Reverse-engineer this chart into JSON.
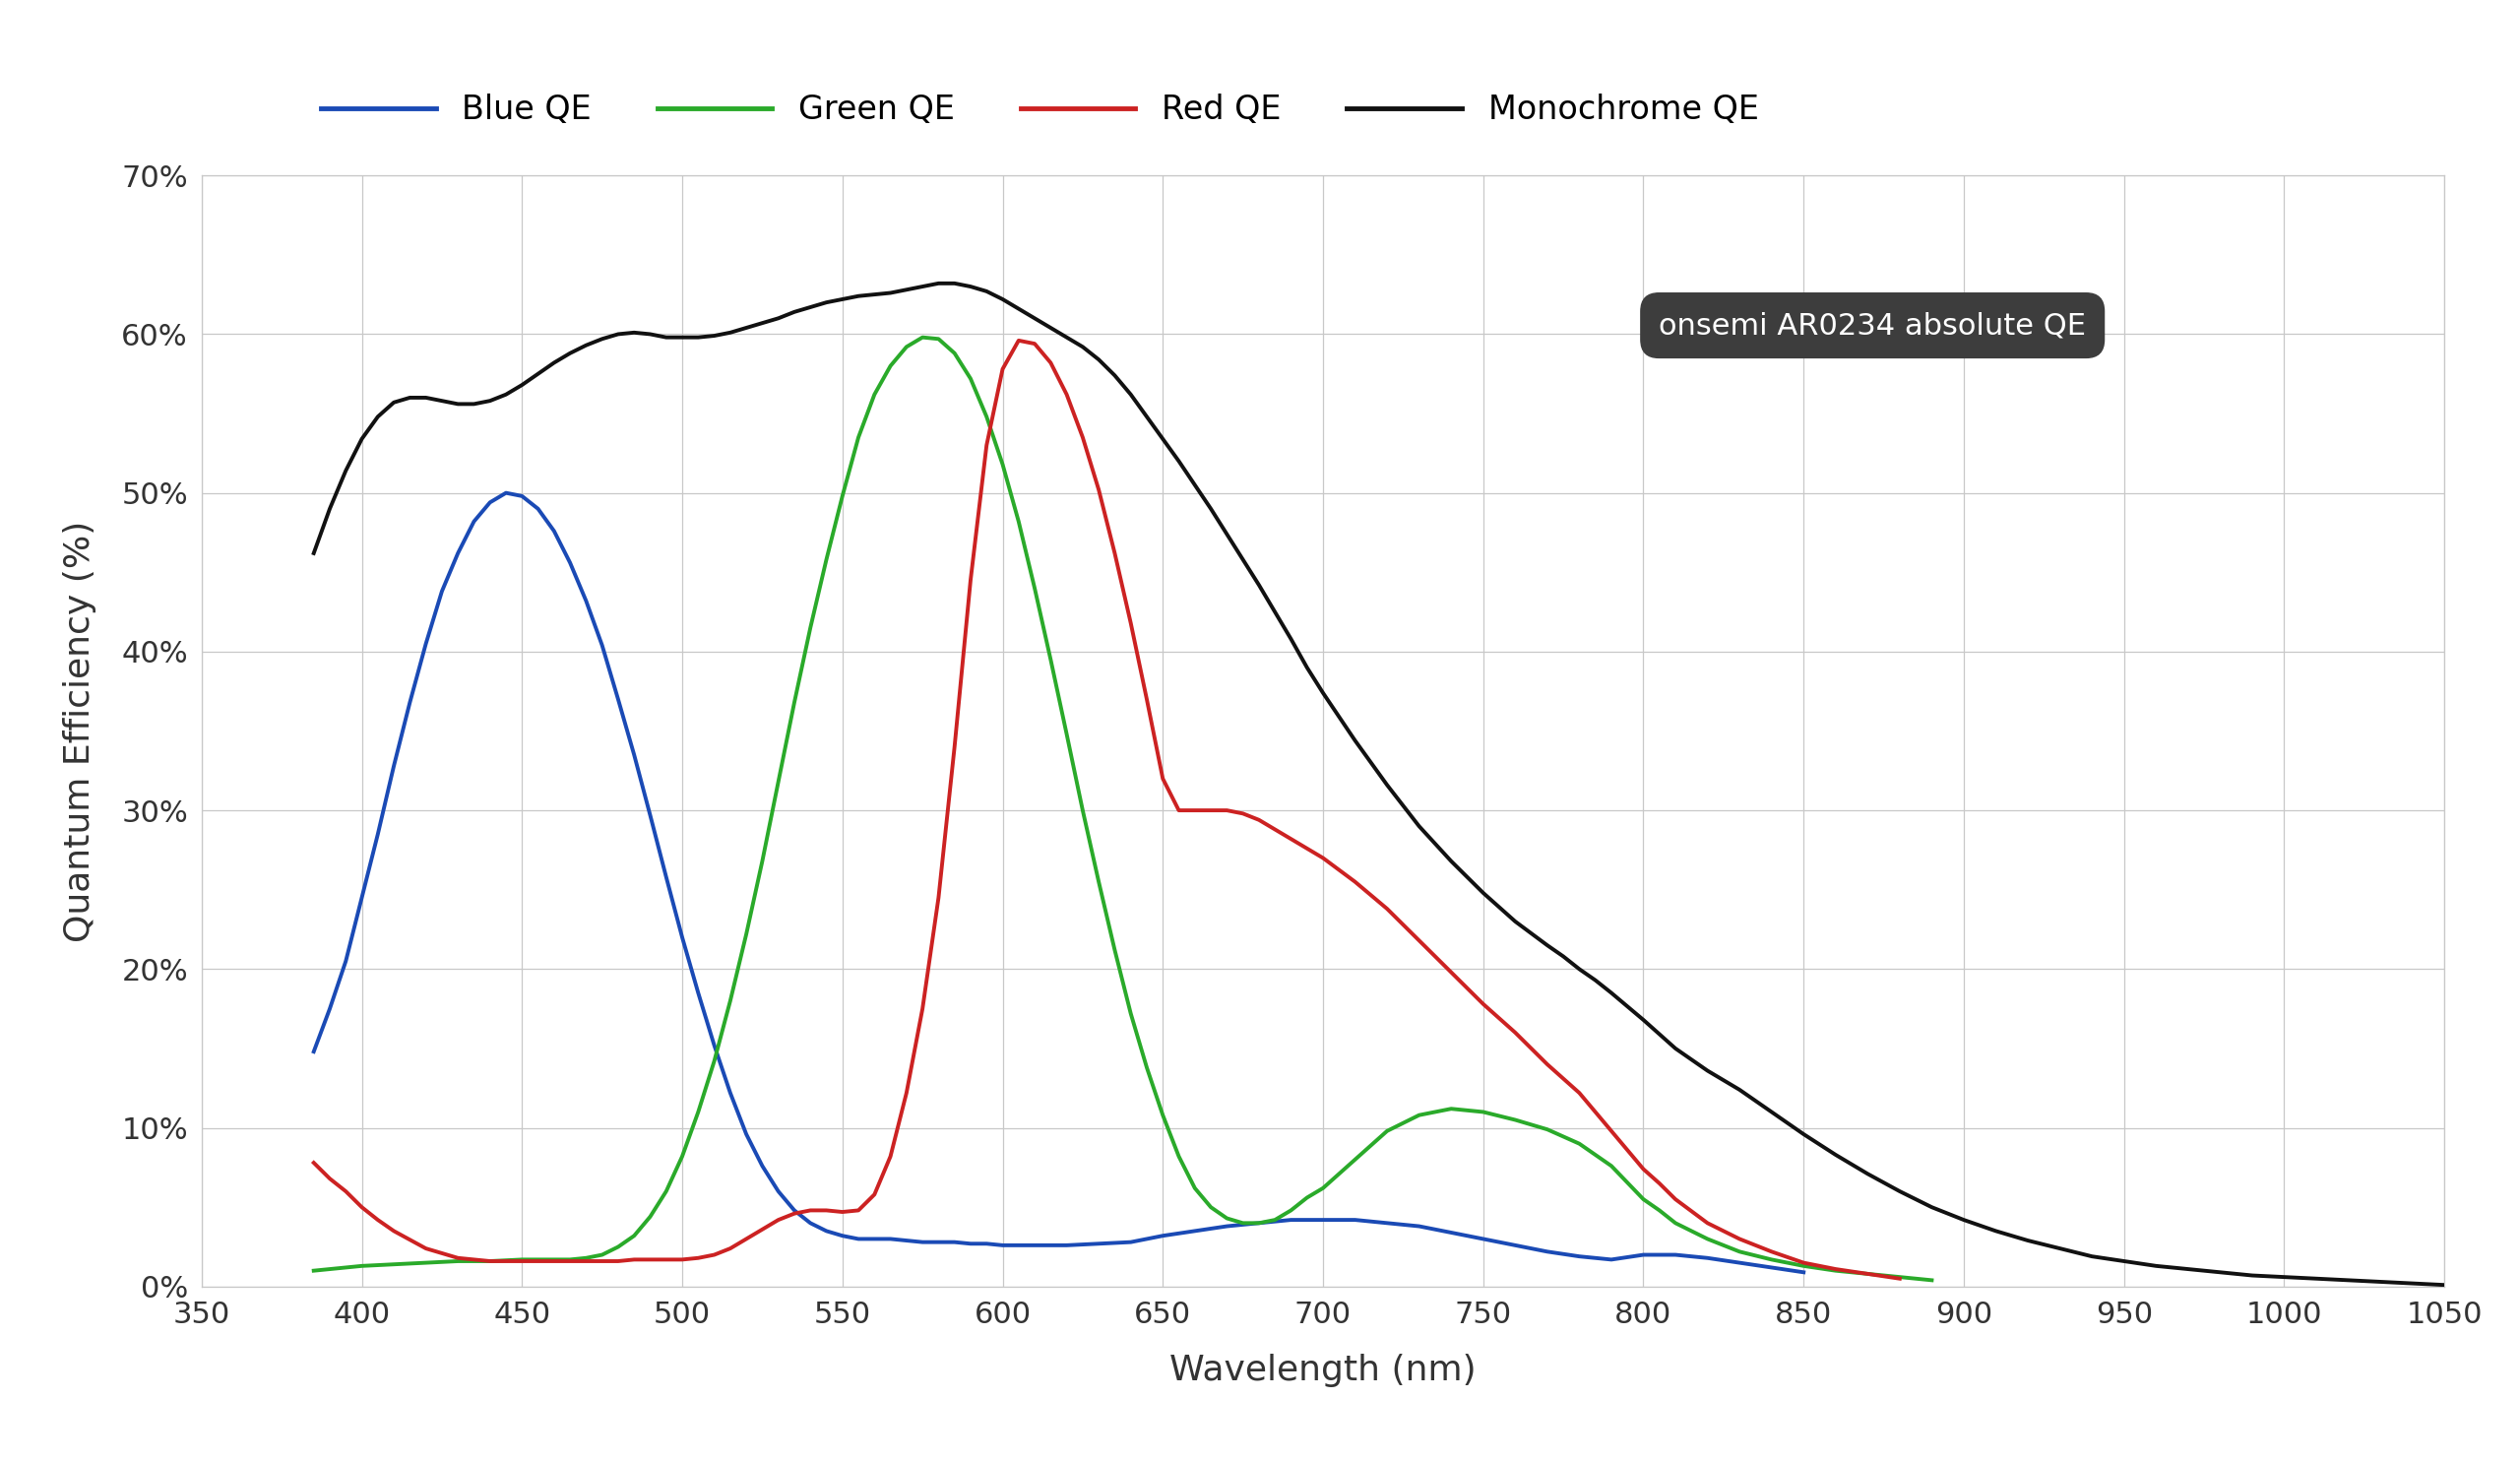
{
  "xlabel": "Wavelength (nm)",
  "ylabel": "Quantum Efficiency (%)",
  "annotation": "onsemi AR0234 absolute QE",
  "xlim": [
    350,
    1050
  ],
  "ylim": [
    0,
    0.7
  ],
  "yticks": [
    0,
    0.1,
    0.2,
    0.3,
    0.4,
    0.5,
    0.6,
    0.7
  ],
  "ytick_labels": [
    "0%",
    "10%",
    "20%",
    "30%",
    "40%",
    "50%",
    "60%",
    "70%"
  ],
  "xticks": [
    350,
    400,
    450,
    500,
    550,
    600,
    650,
    700,
    750,
    800,
    850,
    900,
    950,
    1000,
    1050
  ],
  "background_color": "#ffffff",
  "grid_color": "#c8c8c8",
  "legend_entries": [
    "Blue QE",
    "Green QE",
    "Red QE",
    "Monochrome QE"
  ],
  "line_colors": [
    "#1a4ab5",
    "#2aaa2a",
    "#cc2222",
    "#111111"
  ],
  "blue_qe": {
    "wavelength": [
      385,
      390,
      395,
      400,
      405,
      410,
      415,
      420,
      425,
      430,
      435,
      440,
      445,
      450,
      455,
      460,
      465,
      470,
      475,
      480,
      485,
      490,
      495,
      500,
      505,
      510,
      515,
      520,
      525,
      530,
      535,
      540,
      545,
      550,
      555,
      560,
      565,
      570,
      575,
      580,
      585,
      590,
      595,
      600,
      610,
      620,
      630,
      640,
      650,
      660,
      670,
      680,
      690,
      700,
      710,
      720,
      730,
      740,
      750,
      760,
      770,
      780,
      790,
      800,
      810,
      820,
      830,
      840,
      850
    ],
    "qe": [
      0.148,
      0.175,
      0.205,
      0.245,
      0.285,
      0.328,
      0.368,
      0.405,
      0.438,
      0.462,
      0.482,
      0.494,
      0.5,
      0.498,
      0.49,
      0.476,
      0.456,
      0.432,
      0.404,
      0.37,
      0.335,
      0.297,
      0.258,
      0.22,
      0.185,
      0.152,
      0.122,
      0.096,
      0.076,
      0.06,
      0.048,
      0.04,
      0.035,
      0.032,
      0.03,
      0.03,
      0.03,
      0.029,
      0.028,
      0.028,
      0.028,
      0.027,
      0.027,
      0.026,
      0.026,
      0.026,
      0.027,
      0.028,
      0.032,
      0.035,
      0.038,
      0.04,
      0.042,
      0.042,
      0.042,
      0.04,
      0.038,
      0.034,
      0.03,
      0.026,
      0.022,
      0.019,
      0.017,
      0.02,
      0.02,
      0.018,
      0.015,
      0.012,
      0.009
    ]
  },
  "green_qe": {
    "wavelength": [
      385,
      390,
      395,
      400,
      410,
      420,
      430,
      440,
      450,
      455,
      460,
      465,
      470,
      475,
      480,
      485,
      490,
      495,
      500,
      505,
      510,
      515,
      520,
      525,
      530,
      535,
      540,
      545,
      550,
      555,
      560,
      565,
      570,
      575,
      580,
      585,
      590,
      595,
      600,
      605,
      610,
      615,
      620,
      625,
      630,
      635,
      640,
      645,
      650,
      655,
      660,
      665,
      670,
      675,
      680,
      685,
      690,
      695,
      700,
      710,
      720,
      730,
      740,
      750,
      760,
      770,
      780,
      790,
      800,
      805,
      810,
      820,
      830,
      840,
      850,
      860,
      870,
      880,
      890
    ],
    "qe": [
      0.01,
      0.011,
      0.012,
      0.013,
      0.014,
      0.015,
      0.016,
      0.016,
      0.017,
      0.017,
      0.017,
      0.017,
      0.018,
      0.02,
      0.025,
      0.032,
      0.044,
      0.06,
      0.082,
      0.11,
      0.142,
      0.18,
      0.222,
      0.268,
      0.318,
      0.368,
      0.415,
      0.458,
      0.498,
      0.535,
      0.562,
      0.58,
      0.592,
      0.598,
      0.597,
      0.588,
      0.572,
      0.548,
      0.518,
      0.482,
      0.44,
      0.395,
      0.348,
      0.3,
      0.255,
      0.212,
      0.172,
      0.138,
      0.108,
      0.082,
      0.062,
      0.05,
      0.043,
      0.04,
      0.04,
      0.042,
      0.048,
      0.056,
      0.062,
      0.08,
      0.098,
      0.108,
      0.112,
      0.11,
      0.105,
      0.099,
      0.09,
      0.076,
      0.055,
      0.048,
      0.04,
      0.03,
      0.022,
      0.017,
      0.013,
      0.01,
      0.008,
      0.006,
      0.004
    ]
  },
  "red_qe": {
    "wavelength": [
      385,
      390,
      395,
      400,
      405,
      410,
      420,
      430,
      440,
      450,
      455,
      460,
      465,
      470,
      475,
      480,
      485,
      490,
      495,
      500,
      505,
      510,
      515,
      520,
      525,
      530,
      535,
      540,
      545,
      550,
      555,
      560,
      565,
      570,
      575,
      580,
      585,
      590,
      595,
      600,
      605,
      610,
      615,
      620,
      625,
      630,
      635,
      640,
      645,
      650,
      655,
      660,
      665,
      670,
      675,
      680,
      690,
      700,
      710,
      720,
      730,
      740,
      750,
      760,
      770,
      780,
      790,
      800,
      805,
      810,
      820,
      830,
      840,
      850,
      860,
      870,
      880
    ],
    "qe": [
      0.078,
      0.068,
      0.06,
      0.05,
      0.042,
      0.035,
      0.024,
      0.018,
      0.016,
      0.016,
      0.016,
      0.016,
      0.016,
      0.016,
      0.016,
      0.016,
      0.017,
      0.017,
      0.017,
      0.017,
      0.018,
      0.02,
      0.024,
      0.03,
      0.036,
      0.042,
      0.046,
      0.048,
      0.048,
      0.047,
      0.048,
      0.058,
      0.082,
      0.122,
      0.175,
      0.245,
      0.34,
      0.445,
      0.53,
      0.578,
      0.596,
      0.594,
      0.582,
      0.562,
      0.535,
      0.502,
      0.462,
      0.418,
      0.37,
      0.32,
      0.3,
      0.3,
      0.3,
      0.3,
      0.298,
      0.294,
      0.282,
      0.27,
      0.255,
      0.238,
      0.218,
      0.198,
      0.178,
      0.16,
      0.14,
      0.122,
      0.098,
      0.074,
      0.065,
      0.055,
      0.04,
      0.03,
      0.022,
      0.015,
      0.011,
      0.008,
      0.005
    ]
  },
  "mono_qe": {
    "wavelength": [
      385,
      390,
      395,
      400,
      405,
      410,
      415,
      420,
      425,
      430,
      435,
      440,
      445,
      450,
      455,
      460,
      465,
      470,
      475,
      480,
      485,
      490,
      495,
      500,
      505,
      510,
      515,
      520,
      525,
      530,
      535,
      540,
      545,
      550,
      555,
      560,
      565,
      570,
      575,
      580,
      585,
      590,
      595,
      600,
      605,
      610,
      615,
      620,
      625,
      630,
      635,
      640,
      645,
      650,
      655,
      660,
      665,
      670,
      675,
      680,
      685,
      690,
      695,
      700,
      710,
      720,
      730,
      740,
      750,
      760,
      770,
      775,
      780,
      785,
      790,
      800,
      810,
      820,
      825,
      830,
      840,
      850,
      860,
      870,
      880,
      890,
      900,
      910,
      920,
      930,
      940,
      950,
      960,
      970,
      980,
      990,
      1000,
      1010,
      1020,
      1030,
      1040,
      1050
    ],
    "qe": [
      0.462,
      0.49,
      0.514,
      0.534,
      0.548,
      0.557,
      0.56,
      0.56,
      0.558,
      0.556,
      0.556,
      0.558,
      0.562,
      0.568,
      0.575,
      0.582,
      0.588,
      0.593,
      0.597,
      0.6,
      0.601,
      0.6,
      0.598,
      0.598,
      0.598,
      0.599,
      0.601,
      0.604,
      0.607,
      0.61,
      0.614,
      0.617,
      0.62,
      0.622,
      0.624,
      0.625,
      0.626,
      0.628,
      0.63,
      0.632,
      0.632,
      0.63,
      0.627,
      0.622,
      0.616,
      0.61,
      0.604,
      0.598,
      0.592,
      0.584,
      0.574,
      0.562,
      0.548,
      0.534,
      0.52,
      0.505,
      0.49,
      0.474,
      0.458,
      0.442,
      0.425,
      0.408,
      0.39,
      0.374,
      0.344,
      0.316,
      0.29,
      0.268,
      0.248,
      0.23,
      0.215,
      0.208,
      0.2,
      0.193,
      0.185,
      0.168,
      0.15,
      0.136,
      0.13,
      0.124,
      0.11,
      0.096,
      0.083,
      0.071,
      0.06,
      0.05,
      0.042,
      0.035,
      0.029,
      0.024,
      0.019,
      0.016,
      0.013,
      0.011,
      0.009,
      0.007,
      0.006,
      0.005,
      0.004,
      0.003,
      0.002,
      0.001
    ]
  }
}
